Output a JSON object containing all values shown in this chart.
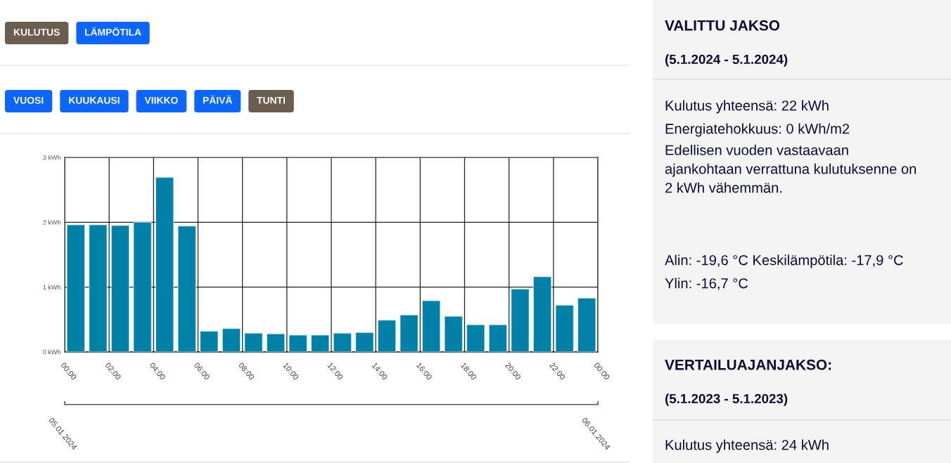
{
  "chart_data": [
    {
      "type": "other",
      "categories": [
        "KULUTUS",
        "LÄMPÖTILA"
      ],
      "colors": [
        "#6b5e50",
        "#0a66ff"
      ]
    },
    {
      "type": "other",
      "categories": [
        "VUOSI",
        "KUUKAUSI",
        "VIIKKO",
        "PÄIVÄ",
        "TUNTI"
      ],
      "colors": [
        "#0a66ff",
        "#0a66ff",
        "#0a66ff",
        "#0a66ff",
        "#6b5e50"
      ]
    },
    {
      "type": "bar",
      "color": "#0180a8",
      "x": [
        0.5,
        1.5,
        2.5,
        3.5,
        4.5,
        5.5,
        6.5,
        7.5,
        8.5,
        9.5,
        10.5,
        11.5,
        12.5,
        13.5,
        14.5,
        15.5,
        16.5,
        17.5,
        18.5,
        19.5,
        20.5,
        21.5,
        22.5,
        23.5
      ],
      "values": [
        1.96,
        1.96,
        1.95,
        2.0,
        2.69,
        1.94,
        0.32,
        0.36,
        0.29,
        0.28,
        0.26,
        0.26,
        0.29,
        0.3,
        0.49,
        0.57,
        0.79,
        0.55,
        0.42,
        0.42,
        0.97,
        1.16,
        0.72,
        0.83
      ],
      "xlim": [
        0,
        24
      ],
      "xticks": [
        {
          "value": 0,
          "label": "00:00"
        },
        {
          "value": 2,
          "label": "02:00"
        },
        {
          "value": 4,
          "label": "04:00"
        },
        {
          "value": 6,
          "label": "06:00"
        },
        {
          "value": 8,
          "label": "08:00"
        },
        {
          "value": 10,
          "label": "10:00"
        },
        {
          "value": 12,
          "label": "12:00"
        },
        {
          "value": 14,
          "label": "14:00"
        },
        {
          "value": 16,
          "label": "16:00"
        },
        {
          "value": 18,
          "label": "18:00"
        },
        {
          "value": 20,
          "label": "20:00"
        },
        {
          "value": 22,
          "label": "22:00"
        },
        {
          "value": 24,
          "label": "00:00"
        }
      ],
      "annotations": [
        "05.01.2024",
        "06.01.2024"
      ],
      "ylim": [
        0,
        3
      ],
      "yticks": [
        {
          "value": 0,
          "label": "0 kWh"
        },
        {
          "value": 1,
          "label": "1 kWh"
        },
        {
          "value": 2,
          "label": "2 kWh"
        },
        {
          "value": 3,
          "label": "3 kWh"
        }
      ],
      "grid": true
    },
    {
      "type": "other",
      "title": "VALITTU JAKSO",
      "subtitle": "(5.1.2024 - 5.1.2024)",
      "annotations": [
        "Kulutus yhteensä: 22 kWh",
        "Energiatehokkuus: 0 kWh/m2",
        "Edellisen vuoden vastaavaan\najankohtaan verrattuna kulutuksenne on\n2 kWh vähemmän.",
        "Alin: -19,6 °C Keskilämpötila: -17,9 °C",
        "Ylin: -16,7 °C"
      ]
    },
    {
      "type": "other",
      "title": "VERTAILUAJANJAKSO:",
      "subtitle": "(5.1.2023 - 5.1.2023)",
      "annotations": [
        "Kulutus yhteensä: 24 kWh"
      ]
    }
  ]
}
